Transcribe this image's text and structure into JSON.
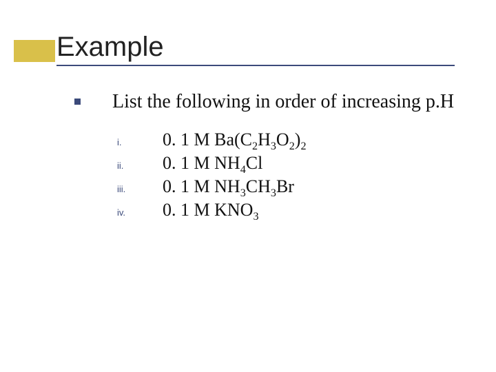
{
  "accent_color": "#d9c04a",
  "underline_color": "#3b4a7a",
  "bullet_color": "#3b4a7a",
  "roman_color": "#3b4a7a",
  "title": "Example",
  "prompt": "List the following in order of increasing p.H",
  "items": [
    {
      "roman": "i.",
      "prefix": "0. 1 M ",
      "formula": "Ba(C<sub>2</sub>H<sub>3</sub>O<sub>2</sub>)<sub>2</sub>"
    },
    {
      "roman": "ii.",
      "prefix": "0. 1 M ",
      "formula": "NH<sub>4</sub>Cl"
    },
    {
      "roman": "iii.",
      "prefix": "0. 1 M ",
      "formula": "NH<sub>3</sub>CH<sub>3</sub>Br"
    },
    {
      "roman": "iv.",
      "prefix": "0. 1 M ",
      "formula": "KNO<sub>3</sub>"
    }
  ]
}
